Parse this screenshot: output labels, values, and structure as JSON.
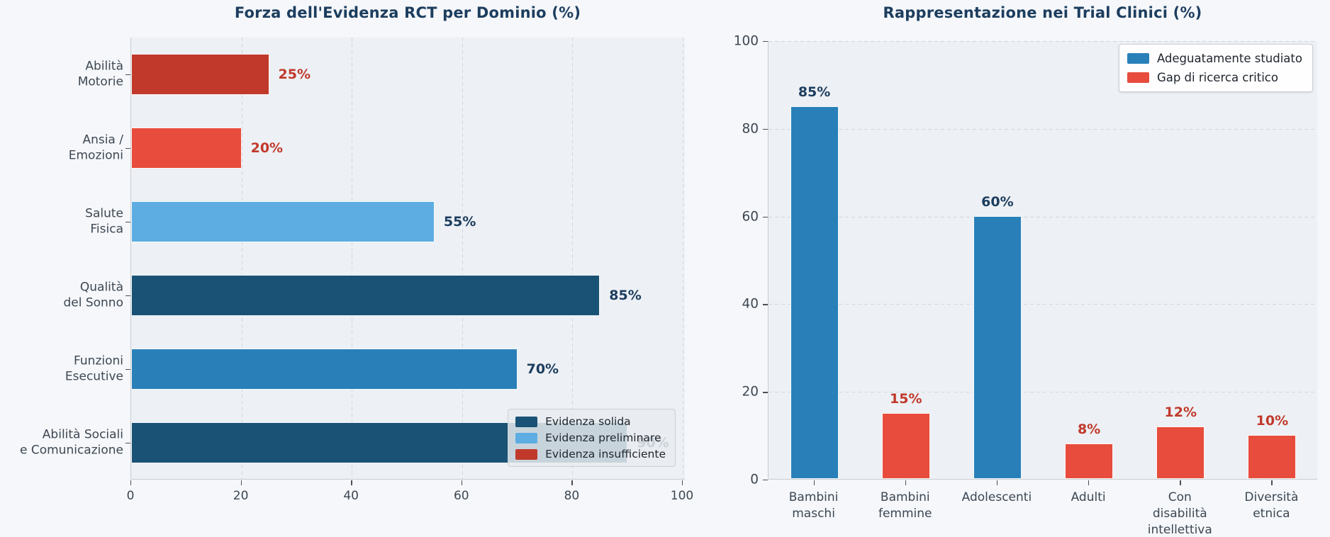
{
  "figure": {
    "background_color": "#f5f7fa",
    "plot_background_color": "#edf0f4",
    "title_color": "#1c3d5e",
    "tick_label_color": "#3d4753",
    "navy_label_color": "#1c3d5e",
    "red_label_color": "#c0392b"
  },
  "chart_data": [
    {
      "type": "bar",
      "orientation": "horizontal",
      "title": "Forza dell'Evidenza RCT per Dominio (%)",
      "categories": [
        [
          "Abilità",
          "Motorie"
        ],
        [
          "Ansia /",
          "Emozioni"
        ],
        [
          "Salute",
          "Fisica"
        ],
        [
          "Qualità",
          "del Sonno"
        ],
        [
          "Funzioni",
          "Esecutive"
        ],
        [
          "Abilità Sociali",
          "e Comunicazione"
        ]
      ],
      "values": [
        25,
        20,
        55,
        85,
        70,
        90
      ],
      "value_labels": [
        "25%",
        "20%",
        "55%",
        "85%",
        "70%",
        "90%"
      ],
      "bar_colors": [
        "#c0392b",
        "#e74c3c",
        "#5dade2",
        "#1a5276",
        "#2980b9",
        "#1a5276"
      ],
      "value_label_colors": [
        "#c0392b",
        "#c0392b",
        "#1c3d5e",
        "#1c3d5e",
        "#1c3d5e",
        "#1c3d5e"
      ],
      "xlim": [
        0,
        100
      ],
      "xticks": [
        0,
        20,
        40,
        60,
        80,
        100
      ],
      "grid": "vertical-dashed",
      "legend_position": "lower right",
      "legend": [
        {
          "label": "Evidenza solida",
          "color": "#1a5276"
        },
        {
          "label": "Evidenza preliminare",
          "color": "#5dade2"
        },
        {
          "label": "Evidenza insufficiente",
          "color": "#c0392b"
        }
      ]
    },
    {
      "type": "bar",
      "orientation": "vertical",
      "title": "Rappresentazione nei Trial Clinici (%)",
      "categories": [
        [
          "Bambini",
          "maschi"
        ],
        [
          "Bambini",
          "femmine"
        ],
        [
          "Adolescenti"
        ],
        [
          "Adulti"
        ],
        [
          "Con",
          "disabilità",
          "intellettiva"
        ],
        [
          "Diversità",
          "etnica"
        ]
      ],
      "values": [
        85,
        15,
        60,
        8,
        12,
        10
      ],
      "value_labels": [
        "85%",
        "15%",
        "60%",
        "8%",
        "12%",
        "10%"
      ],
      "bar_colors": [
        "#2980b9",
        "#e74c3c",
        "#2980b9",
        "#e74c3c",
        "#e74c3c",
        "#e74c3c"
      ],
      "value_label_colors": [
        "#1c3d5e",
        "#c0392b",
        "#1c3d5e",
        "#c0392b",
        "#c0392b",
        "#c0392b"
      ],
      "ylim": [
        0,
        100
      ],
      "yticks": [
        0,
        20,
        40,
        60,
        80,
        100
      ],
      "grid": "horizontal-dashed",
      "legend_position": "upper right",
      "legend": [
        {
          "label": "Adeguatamente studiato",
          "color": "#2980b9"
        },
        {
          "label": "Gap di ricerca critico",
          "color": "#e74c3c"
        }
      ]
    }
  ]
}
